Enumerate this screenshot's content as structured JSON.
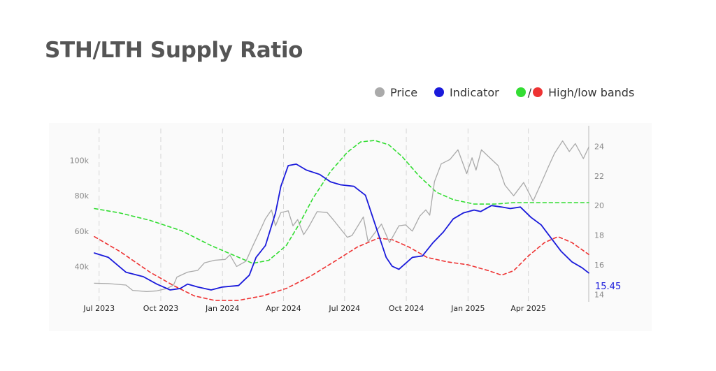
{
  "title": "STH/LTH Supply Ratio",
  "legend": {
    "price_label": "Price",
    "indicator_label": "Indicator",
    "bands_label": "High/low bands",
    "bands_separator": "/",
    "colors": {
      "price": "#aaaaaa",
      "indicator": "#1a1adb",
      "high": "#33dd33",
      "low": "#ee3333"
    }
  },
  "chart_data": {
    "type": "line",
    "x_start": "2023-06-24",
    "x_end": "2025-06-30",
    "x_tick_labels": [
      "Jul 2023",
      "Oct 2023",
      "Jan 2024",
      "Apr 2024",
      "Jul 2024",
      "Oct 2024",
      "Jan 2025",
      "Apr 2025"
    ],
    "x_tick_dates": [
      "2023-07-01",
      "2023-10-01",
      "2024-01-01",
      "2024-04-01",
      "2024-07-01",
      "2024-10-01",
      "2025-01-01",
      "2025-04-01"
    ],
    "left_axis": {
      "label": "",
      "range": [
        20000,
        118000
      ],
      "ticks": [
        40000,
        60000,
        80000,
        100000
      ],
      "tick_labels": [
        "40k",
        "60k",
        "80k",
        "100k"
      ]
    },
    "right_axis": {
      "label": "",
      "range": [
        13.5,
        25.2
      ],
      "ticks": [
        14,
        16,
        18,
        20,
        22,
        24
      ],
      "tick_labels": [
        "14",
        "16",
        "18",
        "20",
        "22",
        "24"
      ]
    },
    "grid": {
      "vertical": true,
      "horizontal": false,
      "style": "dashed"
    },
    "last_value_label": "15.45",
    "series": [
      {
        "name": "Price",
        "axis": "left",
        "color": "#aaaaaa",
        "style": "solid",
        "points": [
          [
            "2023-06-24",
            30500
          ],
          [
            "2023-07-15",
            30300
          ],
          [
            "2023-08-10",
            29500
          ],
          [
            "2023-08-20",
            26500
          ],
          [
            "2023-09-10",
            25800
          ],
          [
            "2023-09-25",
            26200
          ],
          [
            "2023-10-10",
            27500
          ],
          [
            "2023-10-20",
            29500
          ],
          [
            "2023-10-25",
            34000
          ],
          [
            "2023-11-10",
            36800
          ],
          [
            "2023-11-25",
            37800
          ],
          [
            "2023-12-05",
            42000
          ],
          [
            "2023-12-20",
            43500
          ],
          [
            "2024-01-05",
            44000
          ],
          [
            "2024-01-12",
            46500
          ],
          [
            "2024-01-22",
            40000
          ],
          [
            "2024-02-05",
            43000
          ],
          [
            "2024-02-15",
            51500
          ],
          [
            "2024-02-28",
            62000
          ],
          [
            "2024-03-05",
            67000
          ],
          [
            "2024-03-14",
            72000
          ],
          [
            "2024-03-20",
            63000
          ],
          [
            "2024-03-28",
            70500
          ],
          [
            "2024-04-08",
            71500
          ],
          [
            "2024-04-15",
            63000
          ],
          [
            "2024-04-22",
            66500
          ],
          [
            "2024-05-01",
            58000
          ],
          [
            "2024-05-08",
            62000
          ],
          [
            "2024-05-21",
            71000
          ],
          [
            "2024-06-05",
            70500
          ],
          [
            "2024-06-15",
            66000
          ],
          [
            "2024-07-05",
            56500
          ],
          [
            "2024-07-12",
            57500
          ],
          [
            "2024-07-29",
            68000
          ],
          [
            "2024-08-05",
            54000
          ],
          [
            "2024-08-15",
            59000
          ],
          [
            "2024-08-25",
            64000
          ],
          [
            "2024-09-06",
            53500
          ],
          [
            "2024-09-20",
            63000
          ],
          [
            "2024-09-30",
            63500
          ],
          [
            "2024-10-10",
            60000
          ],
          [
            "2024-10-21",
            68500
          ],
          [
            "2024-10-30",
            72000
          ],
          [
            "2024-11-05",
            69000
          ],
          [
            "2024-11-12",
            88000
          ],
          [
            "2024-11-22",
            98000
          ],
          [
            "2024-12-05",
            100500
          ],
          [
            "2024-12-17",
            106000
          ],
          [
            "2024-12-30",
            92500
          ],
          [
            "2025-01-07",
            101500
          ],
          [
            "2025-01-13",
            94500
          ],
          [
            "2025-01-21",
            106000
          ],
          [
            "2025-02-01",
            102000
          ],
          [
            "2025-02-15",
            97000
          ],
          [
            "2025-02-25",
            86000
          ],
          [
            "2025-03-10",
            80000
          ],
          [
            "2025-03-25",
            87500
          ],
          [
            "2025-04-08",
            77000
          ],
          [
            "2025-04-20",
            87000
          ],
          [
            "2025-05-01",
            96500
          ],
          [
            "2025-05-10",
            104000
          ],
          [
            "2025-05-22",
            111000
          ],
          [
            "2025-06-01",
            105000
          ],
          [
            "2025-06-10",
            109500
          ],
          [
            "2025-06-22",
            101000
          ],
          [
            "2025-06-30",
            107500
          ]
        ]
      },
      {
        "name": "Indicator",
        "axis": "right",
        "color": "#1a1adb",
        "style": "solid",
        "points": [
          [
            "2023-06-24",
            16.8
          ],
          [
            "2023-07-15",
            16.5
          ],
          [
            "2023-08-10",
            15.5
          ],
          [
            "2023-09-05",
            15.2
          ],
          [
            "2023-09-25",
            14.7
          ],
          [
            "2023-10-15",
            14.3
          ],
          [
            "2023-10-30",
            14.4
          ],
          [
            "2023-11-10",
            14.7
          ],
          [
            "2023-11-25",
            14.5
          ],
          [
            "2023-12-15",
            14.3
          ],
          [
            "2024-01-01",
            14.5
          ],
          [
            "2024-01-25",
            14.6
          ],
          [
            "2024-02-10",
            15.3
          ],
          [
            "2024-02-20",
            16.5
          ],
          [
            "2024-03-05",
            17.3
          ],
          [
            "2024-03-20",
            19.5
          ],
          [
            "2024-03-28",
            21.3
          ],
          [
            "2024-04-08",
            22.7
          ],
          [
            "2024-04-20",
            22.8
          ],
          [
            "2024-05-05",
            22.4
          ],
          [
            "2024-05-25",
            22.1
          ],
          [
            "2024-06-10",
            21.6
          ],
          [
            "2024-06-25",
            21.4
          ],
          [
            "2024-07-15",
            21.3
          ],
          [
            "2024-08-01",
            20.7
          ],
          [
            "2024-08-15",
            18.8
          ],
          [
            "2024-09-01",
            16.5
          ],
          [
            "2024-09-10",
            15.9
          ],
          [
            "2024-09-20",
            15.7
          ],
          [
            "2024-09-30",
            16.1
          ],
          [
            "2024-10-10",
            16.5
          ],
          [
            "2024-10-25",
            16.6
          ],
          [
            "2024-11-10",
            17.5
          ],
          [
            "2024-11-25",
            18.2
          ],
          [
            "2024-12-10",
            19.1
          ],
          [
            "2024-12-25",
            19.5
          ],
          [
            "2025-01-10",
            19.7
          ],
          [
            "2025-01-20",
            19.6
          ],
          [
            "2025-02-05",
            20.0
          ],
          [
            "2025-02-20",
            19.9
          ],
          [
            "2025-03-05",
            19.8
          ],
          [
            "2025-03-20",
            19.9
          ],
          [
            "2025-04-05",
            19.2
          ],
          [
            "2025-04-20",
            18.7
          ],
          [
            "2025-05-05",
            17.8
          ],
          [
            "2025-05-20",
            16.9
          ],
          [
            "2025-06-05",
            16.2
          ],
          [
            "2025-06-20",
            15.8
          ],
          [
            "2025-06-30",
            15.45
          ]
        ]
      },
      {
        "name": "High band",
        "axis": "right",
        "color": "#33dd33",
        "style": "dashed",
        "points": [
          [
            "2023-06-24",
            19.8
          ],
          [
            "2023-08-01",
            19.5
          ],
          [
            "2023-09-15",
            19.0
          ],
          [
            "2023-11-01",
            18.3
          ],
          [
            "2023-12-15",
            17.3
          ],
          [
            "2024-01-20",
            16.6
          ],
          [
            "2024-02-15",
            16.1
          ],
          [
            "2024-03-10",
            16.3
          ],
          [
            "2024-04-05",
            17.3
          ],
          [
            "2024-04-25",
            18.8
          ],
          [
            "2024-05-15",
            20.5
          ],
          [
            "2024-06-10",
            22.3
          ],
          [
            "2024-07-05",
            23.6
          ],
          [
            "2024-07-25",
            24.3
          ],
          [
            "2024-08-15",
            24.4
          ],
          [
            "2024-09-05",
            24.1
          ],
          [
            "2024-09-25",
            23.3
          ],
          [
            "2024-10-20",
            22.0
          ],
          [
            "2024-11-15",
            20.9
          ],
          [
            "2024-12-10",
            20.4
          ],
          [
            "2025-01-10",
            20.1
          ],
          [
            "2025-02-10",
            20.1
          ],
          [
            "2025-03-10",
            20.2
          ],
          [
            "2025-04-10",
            20.2
          ],
          [
            "2025-05-10",
            20.2
          ],
          [
            "2025-06-30",
            20.2
          ]
        ]
      },
      {
        "name": "Low band",
        "axis": "right",
        "color": "#ee3333",
        "style": "dashed",
        "points": [
          [
            "2023-06-24",
            17.9
          ],
          [
            "2023-08-01",
            16.9
          ],
          [
            "2023-09-15",
            15.5
          ],
          [
            "2023-10-20",
            14.6
          ],
          [
            "2023-11-20",
            13.9
          ],
          [
            "2023-12-20",
            13.6
          ],
          [
            "2024-01-25",
            13.6
          ],
          [
            "2024-03-01",
            13.9
          ],
          [
            "2024-04-05",
            14.4
          ],
          [
            "2024-05-10",
            15.2
          ],
          [
            "2024-06-15",
            16.2
          ],
          [
            "2024-07-20",
            17.2
          ],
          [
            "2024-08-20",
            17.8
          ],
          [
            "2024-09-10",
            17.7
          ],
          [
            "2024-10-05",
            17.2
          ],
          [
            "2024-11-01",
            16.5
          ],
          [
            "2024-12-01",
            16.2
          ],
          [
            "2025-01-01",
            16.0
          ],
          [
            "2025-02-01",
            15.6
          ],
          [
            "2025-02-20",
            15.3
          ],
          [
            "2025-03-10",
            15.6
          ],
          [
            "2025-04-01",
            16.6
          ],
          [
            "2025-04-25",
            17.5
          ],
          [
            "2025-05-15",
            17.9
          ],
          [
            "2025-06-05",
            17.5
          ],
          [
            "2025-06-30",
            16.7
          ]
        ]
      }
    ]
  }
}
